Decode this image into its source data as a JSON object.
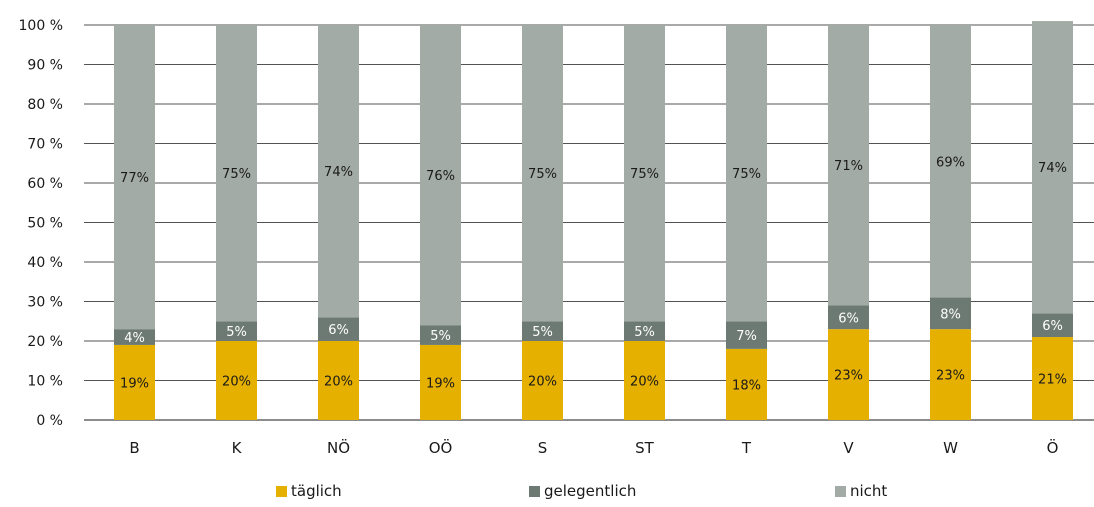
{
  "chart_data": {
    "type": "bar",
    "stacked": true,
    "categories": [
      "B",
      "K",
      "NÖ",
      "OÖ",
      "S",
      "ST",
      "T",
      "V",
      "W",
      "Ö"
    ],
    "series": [
      {
        "name": "täglich",
        "color": "#e6b000",
        "values": [
          19,
          20,
          20,
          19,
          20,
          20,
          18,
          23,
          23,
          21
        ],
        "labels": [
          "19%",
          "20%",
          "20%",
          "19%",
          "20%",
          "20%",
          "18%",
          "23%",
          "23%",
          "21%"
        ]
      },
      {
        "name": "gelegentlich",
        "color": "#6d7a73",
        "values": [
          4,
          5,
          6,
          5,
          5,
          5,
          7,
          6,
          8,
          6
        ],
        "labels": [
          "4%",
          "5%",
          "6%",
          "5%",
          "5%",
          "5%",
          "7%",
          "6%",
          "8%",
          "6%"
        ]
      },
      {
        "name": "nicht",
        "color": "#a3aba6",
        "values": [
          77,
          75,
          74,
          76,
          75,
          75,
          75,
          71,
          69,
          74
        ],
        "labels": [
          "77%",
          "75%",
          "74%",
          "76%",
          "75%",
          "75%",
          "75%",
          "71%",
          "69%",
          "74%"
        ]
      }
    ],
    "ylim": [
      0,
      100
    ],
    "yticks": [
      0,
      10,
      20,
      30,
      40,
      50,
      60,
      70,
      80,
      90,
      100
    ],
    "ytick_labels": [
      "0 %",
      "10 %",
      "20 %",
      "30 %",
      "40 %",
      "50 %",
      "60 %",
      "70 %",
      "80 %",
      "90 %",
      "100 %"
    ],
    "grid": true,
    "legend_position": "bottom",
    "title": "",
    "xlabel": "",
    "ylabel": ""
  }
}
